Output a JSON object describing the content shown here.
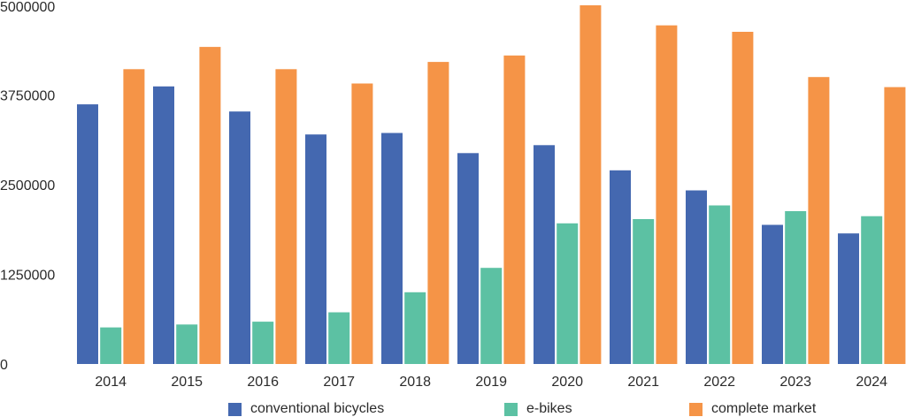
{
  "chart_data": {
    "type": "bar",
    "categories": [
      "2014",
      "2015",
      "2016",
      "2017",
      "2018",
      "2019",
      "2020",
      "2021",
      "2022",
      "2023",
      "2024"
    ],
    "series": [
      {
        "name": "conventional bicycles",
        "color": "#4468b0",
        "values": [
          3620000,
          3870000,
          3520000,
          3200000,
          3220000,
          2940000,
          3050000,
          2700000,
          2420000,
          1940000,
          1820000
        ]
      },
      {
        "name": "e-bikes",
        "color": "#5cc1a3",
        "values": [
          510000,
          550000,
          590000,
          720000,
          1000000,
          1340000,
          1960000,
          2020000,
          2210000,
          2130000,
          2060000
        ]
      },
      {
        "name": "complete market",
        "color": "#f59447",
        "values": [
          4110000,
          4420000,
          4110000,
          3910000,
          4210000,
          4300000,
          5000000,
          4720000,
          4630000,
          4000000,
          3860000
        ]
      }
    ],
    "yticks": [
      "0",
      "1250000",
      "2500000",
      "3750000",
      "5000000"
    ],
    "ylim": [
      0,
      5000000
    ],
    "title": "",
    "xlabel": "",
    "ylabel": "",
    "legend_position": "bottom",
    "grid": false
  }
}
